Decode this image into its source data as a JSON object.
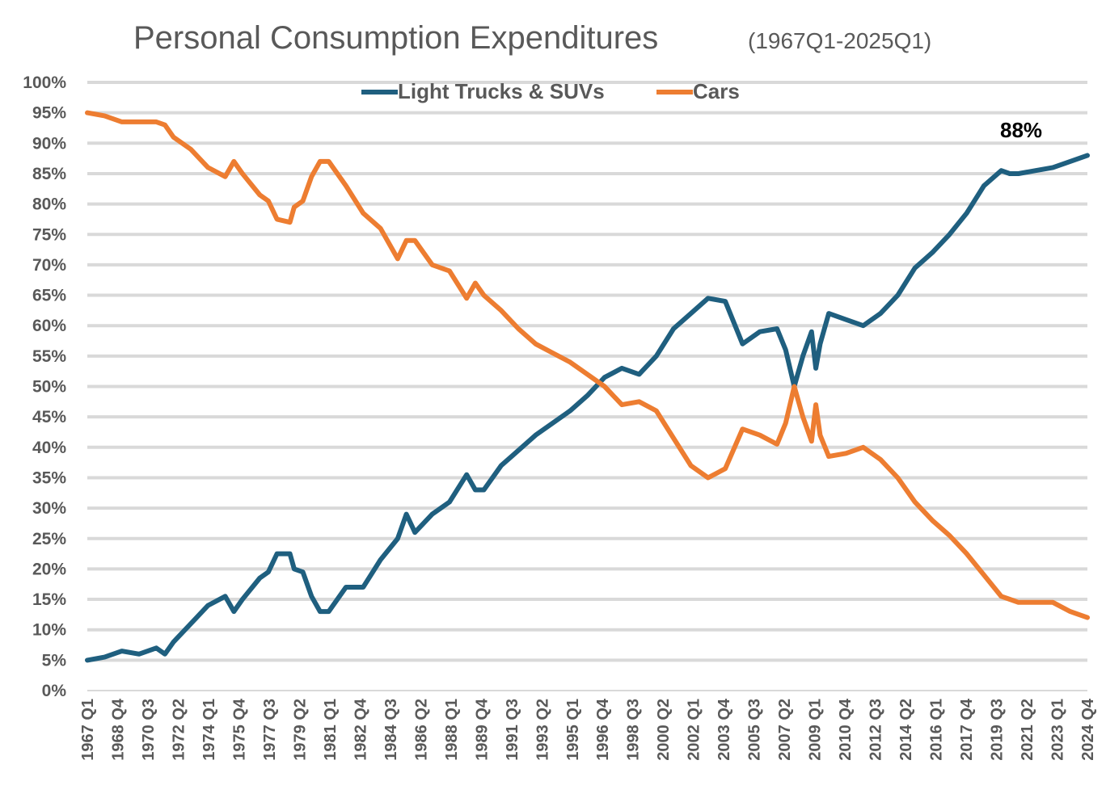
{
  "chart_data": {
    "type": "line",
    "title": "Personal Consumption Expenditures",
    "subtitle": "(1967Q1-2025Q1)",
    "xlabel": "",
    "ylabel": "",
    "ylim": [
      0,
      100
    ],
    "grid": true,
    "legend_position": "top-center",
    "y_ticks": [
      "0%",
      "5%",
      "10%",
      "15%",
      "20%",
      "25%",
      "30%",
      "35%",
      "40%",
      "45%",
      "50%",
      "55%",
      "60%",
      "65%",
      "70%",
      "75%",
      "80%",
      "85%",
      "90%",
      "95%",
      "100%"
    ],
    "x_tick_labels": [
      "1967 Q1",
      "1968 Q4",
      "1970 Q3",
      "1972 Q2",
      "1974 Q1",
      "1975 Q4",
      "1977 Q3",
      "1979 Q2",
      "1981 Q1",
      "1982 Q4",
      "1984 Q3",
      "1986 Q2",
      "1988 Q1",
      "1989 Q4",
      "1991 Q3",
      "1993 Q2",
      "1995 Q1",
      "1996 Q4",
      "1998 Q3",
      "2000 Q2",
      "2002 Q1",
      "2003 Q4",
      "2005 Q3",
      "2007 Q2",
      "2009 Q1",
      "2010 Q4",
      "2012 Q3",
      "2014 Q2",
      "2016 Q1",
      "2017 Q4",
      "2019 Q3",
      "2021 Q2",
      "2023 Q1",
      "2024 Q4"
    ],
    "series": [
      {
        "name": "Light Trucks & SUVs",
        "color": "#1f5f7f",
        "x": [
          1967.0,
          1968.0,
          1969.0,
          1970.0,
          1971.0,
          1971.5,
          1972.0,
          1973.0,
          1974.0,
          1975.0,
          1975.5,
          1976.0,
          1977.0,
          1977.5,
          1978.0,
          1978.75,
          1979.0,
          1979.5,
          1980.0,
          1980.5,
          1981.0,
          1981.5,
          1982.0,
          1983.0,
          1984.0,
          1985.0,
          1985.5,
          1986.0,
          1987.0,
          1988.0,
          1989.0,
          1989.5,
          1990.0,
          1991.0,
          1992.0,
          1993.0,
          1994.0,
          1995.0,
          1996.0,
          1997.0,
          1998.0,
          1999.0,
          2000.0,
          2001.0,
          2002.0,
          2003.0,
          2004.0,
          2005.0,
          2006.0,
          2007.0,
          2007.5,
          2008.0,
          2008.5,
          2009.0,
          2009.25,
          2009.5,
          2010.0,
          2011.0,
          2012.0,
          2013.0,
          2014.0,
          2015.0,
          2016.0,
          2017.0,
          2018.0,
          2019.0,
          2020.0,
          2020.5,
          2021.0,
          2022.0,
          2023.0,
          2024.0,
          2025.0
        ],
        "values": [
          5,
          5.5,
          6.5,
          6,
          7,
          6,
          8,
          11,
          14,
          15.5,
          13,
          15,
          18.5,
          19.5,
          22.5,
          22.5,
          20,
          19.5,
          15.5,
          13,
          13,
          15,
          17,
          17,
          21.5,
          25,
          29,
          26,
          29,
          31,
          35.5,
          33,
          33,
          37,
          39.5,
          42,
          44,
          46,
          48.5,
          51.5,
          53,
          52,
          55,
          59.5,
          62,
          64.5,
          64,
          57,
          59,
          59.5,
          56,
          50,
          55,
          59,
          53,
          57,
          62,
          61,
          60,
          62,
          65,
          69.5,
          72,
          75,
          78.5,
          83,
          85.5,
          85,
          85,
          85.5,
          86,
          87,
          88
        ]
      },
      {
        "name": "Cars",
        "color": "#ed7d31",
        "x": [
          1967.0,
          1968.0,
          1969.0,
          1970.0,
          1971.0,
          1971.5,
          1972.0,
          1973.0,
          1974.0,
          1975.0,
          1975.5,
          1976.0,
          1977.0,
          1977.5,
          1978.0,
          1978.75,
          1979.0,
          1979.5,
          1980.0,
          1980.5,
          1981.0,
          1981.5,
          1982.0,
          1983.0,
          1984.0,
          1985.0,
          1985.5,
          1986.0,
          1987.0,
          1988.0,
          1989.0,
          1989.5,
          1990.0,
          1991.0,
          1992.0,
          1993.0,
          1994.0,
          1995.0,
          1996.0,
          1997.0,
          1998.0,
          1999.0,
          2000.0,
          2001.0,
          2002.0,
          2003.0,
          2004.0,
          2005.0,
          2006.0,
          2007.0,
          2007.5,
          2008.0,
          2008.5,
          2009.0,
          2009.25,
          2009.5,
          2010.0,
          2011.0,
          2012.0,
          2013.0,
          2014.0,
          2015.0,
          2016.0,
          2017.0,
          2018.0,
          2019.0,
          2020.0,
          2020.5,
          2021.0,
          2022.0,
          2023.0,
          2024.0,
          2025.0
        ],
        "values": [
          95,
          94.5,
          93.5,
          93.5,
          93.5,
          93,
          91,
          89,
          86,
          84.5,
          87,
          85,
          81.5,
          80.5,
          77.5,
          77,
          79.5,
          80.5,
          84.5,
          87,
          87,
          85,
          83,
          78.5,
          76,
          71,
          74,
          74,
          70,
          69,
          64.5,
          67,
          65,
          62.5,
          59.5,
          57,
          55.5,
          54,
          52,
          50,
          47,
          47.5,
          46,
          41.5,
          37,
          35,
          36.5,
          43,
          42,
          40.5,
          44,
          50,
          45,
          41,
          47,
          42,
          38.5,
          39,
          40,
          38,
          35,
          31,
          28,
          25.5,
          22.5,
          19,
          15.5,
          15,
          14.5,
          14.5,
          14.5,
          13,
          12
        ]
      }
    ],
    "annotations": [
      {
        "text": "88%",
        "x": 2025.0,
        "y": 88
      }
    ]
  }
}
